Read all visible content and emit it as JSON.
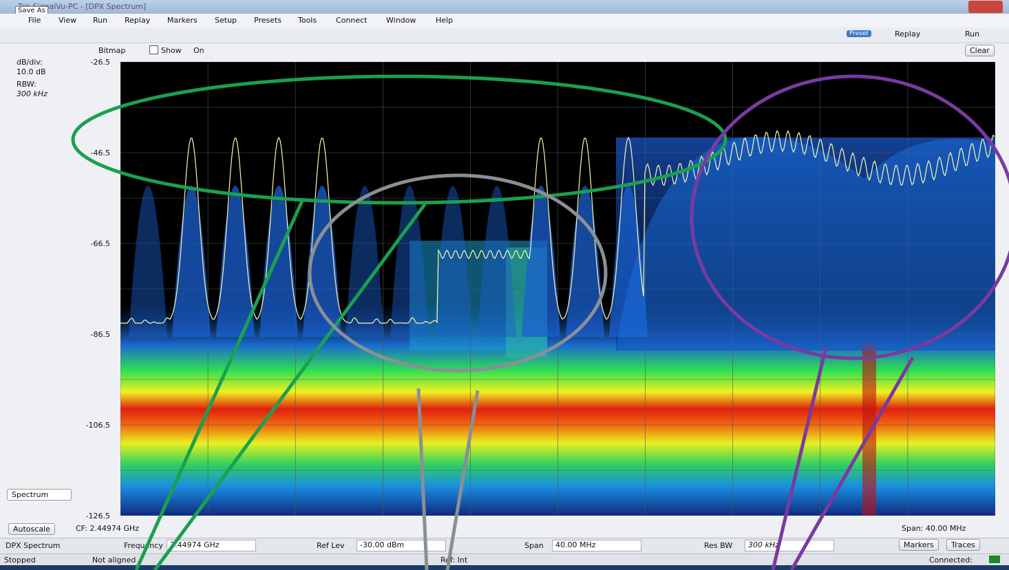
{
  "window": {
    "title": "Tek SignalVu-PC - [DPX Spectrum]",
    "tooltip": "Save As"
  },
  "menu": [
    "File",
    "View",
    "Run",
    "Replay",
    "Markers",
    "Setup",
    "Presets",
    "Tools",
    "Connect",
    "Window",
    "Help"
  ],
  "toolbar": {
    "preset": "Preset",
    "replay": "Replay",
    "run": "Run"
  },
  "display_bar": {
    "bitmap": "Bitmap",
    "show": "Show",
    "on": "On",
    "clear": "Clear"
  },
  "side_panel": {
    "db_div_label": "dB/div:",
    "db_div": "10.0 dB",
    "rbw_label": "RBW:",
    "rbw": "300 kHz",
    "view_select": "Spectrum",
    "autoscale": "Autoscale"
  },
  "plot": {
    "y_labels": [
      "-26.5",
      "-46.5",
      "-66.5",
      "-86.5",
      "-106.5",
      "-126.5"
    ],
    "cf": "CF: 2.44974 GHz",
    "span": "Span: 40.00 MHz"
  },
  "settings_bar": {
    "display": "DPX Spectrum",
    "frequency_label": "Frequency",
    "frequency": "2.44974 GHz",
    "ref_lev_label": "Ref Lev",
    "ref_lev": "-30.00 dBm",
    "span_label": "Span",
    "span": "40.00 MHz",
    "res_bw_label": "Res BW",
    "res_bw": "300 kHz",
    "markers": "Markers",
    "traces": "Traces"
  },
  "status_bar": {
    "state": "Stopped",
    "alignment": "Not aligned",
    "ref": "Ref: Int",
    "connection": "Connected:"
  }
}
